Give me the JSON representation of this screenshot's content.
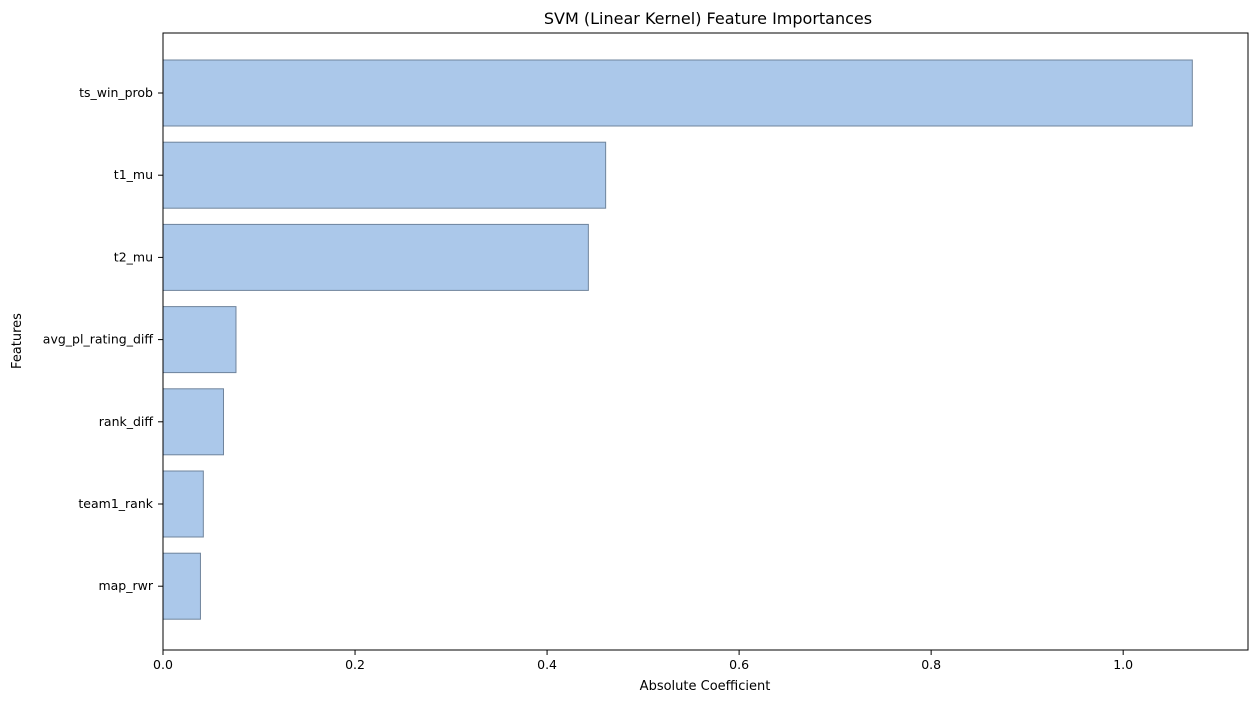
{
  "chart_data": {
    "type": "bar",
    "orientation": "horizontal",
    "title": "SVM (Linear Kernel) Feature Importances",
    "xlabel": "Absolute Coefficient",
    "ylabel": "Features",
    "categories": [
      "ts_win_prob",
      "t1_mu",
      "t2_mu",
      "avg_pl_rating_diff",
      "rank_diff",
      "team1_rank",
      "map_rwr"
    ],
    "values": [
      1.072,
      0.461,
      0.443,
      0.076,
      0.063,
      0.042,
      0.039
    ],
    "xlim": [
      0,
      1.13
    ],
    "xticks": [
      0.0,
      0.2,
      0.4,
      0.6,
      0.8,
      1.0
    ],
    "xtick_labels": [
      "0.0",
      "0.2",
      "0.4",
      "0.6",
      "0.8",
      "1.0"
    ],
    "bar_color": "#abc8ea",
    "bar_edge_color": "#6f849c",
    "grid": false,
    "legend": "none"
  }
}
